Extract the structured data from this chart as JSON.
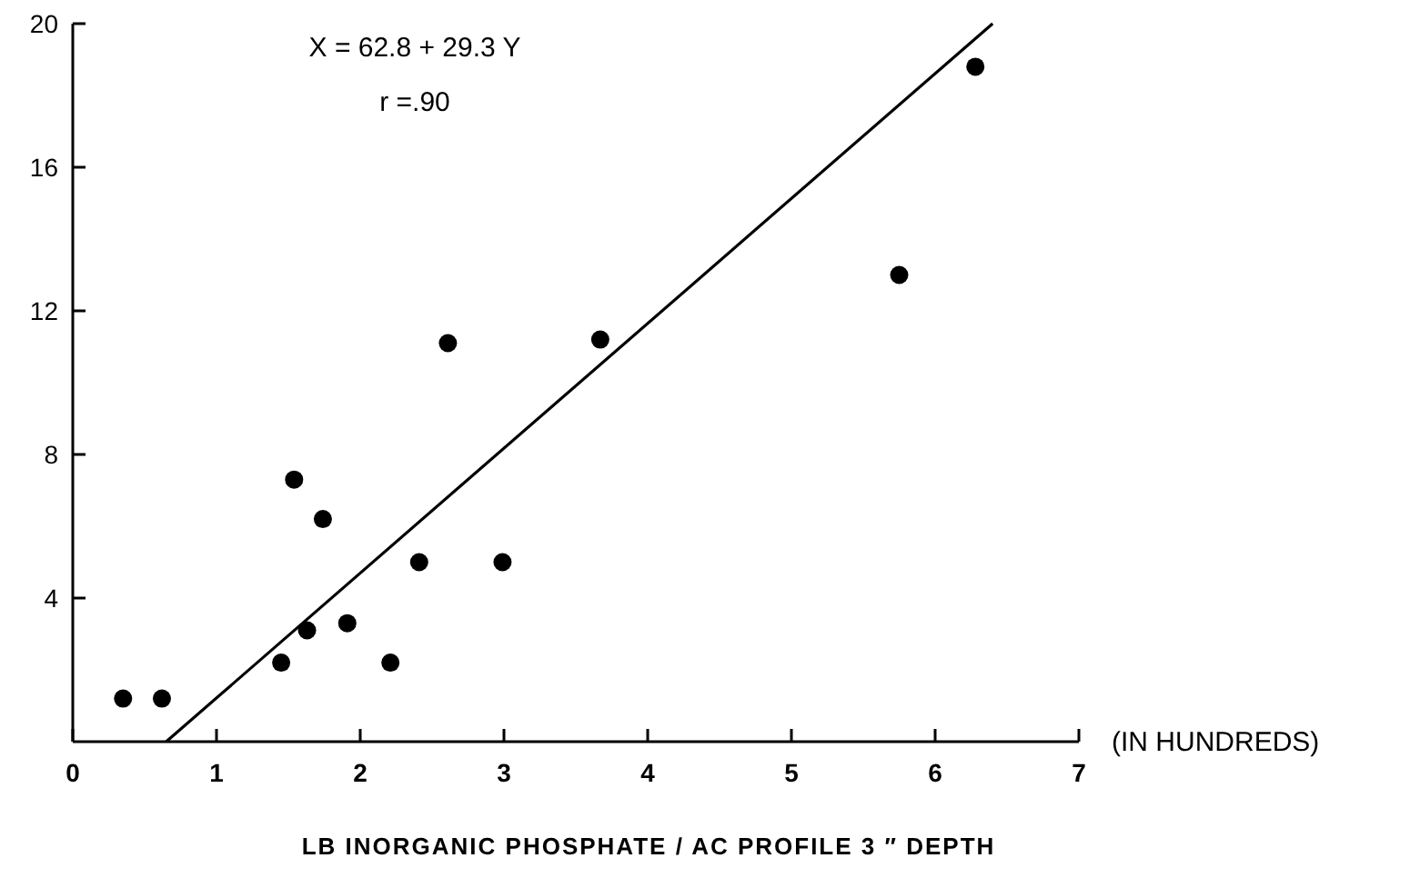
{
  "chart_data": {
    "type": "scatter",
    "xlabel": "LB   INORGANIC PHOSPHATE  / AC PROFILE 3 ″ DEPTH",
    "annotations": [
      "X = 62.8 + 29.3 Y",
      "r =.90",
      "(IN HUNDREDS)"
    ],
    "xlim": [
      0,
      7
    ],
    "xticks": [
      0,
      1,
      2,
      3,
      4,
      5,
      6,
      7
    ],
    "ylim": [
      0,
      20
    ],
    "yticks": [
      4,
      8,
      12,
      16,
      20
    ],
    "grid": false,
    "marker": "circle",
    "series": [
      {
        "color": "#000000",
        "x": [
          0.35,
          0.62,
          1.45,
          1.54,
          1.63,
          1.74,
          1.91,
          2.21,
          2.41,
          2.61,
          2.99,
          3.67,
          5.75,
          6.28
        ],
        "values": [
          1.2,
          1.2,
          2.2,
          7.3,
          3.1,
          6.2,
          3.3,
          2.2,
          5.0,
          11.1,
          5.0,
          11.2,
          13.0,
          18.8
        ]
      },
      {
        "type": "line",
        "color": "#000000",
        "line_style": "solid",
        "marker": "none",
        "x": [
          0.65,
          6.4
        ],
        "values": [
          0,
          20
        ]
      }
    ]
  }
}
